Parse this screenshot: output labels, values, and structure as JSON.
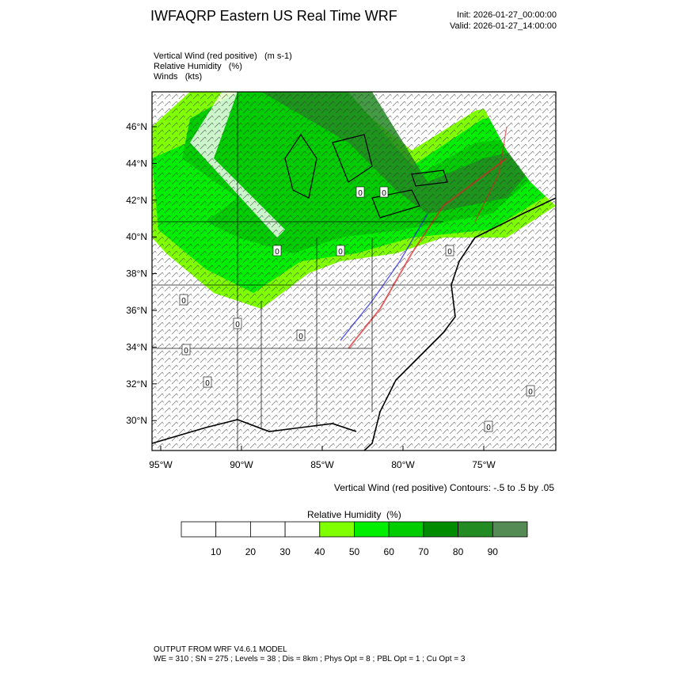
{
  "header": {
    "title": "IWFAQRP Eastern US Real Time WRF",
    "init": "Init: 2026-01-27_00:00:00",
    "valid": "Valid: 2026-01-27_14:00:00"
  },
  "fields": [
    "Vertical Wind (red positive)   (m s-1)",
    "Relative Humidity   (%)",
    "Winds   (kts)"
  ],
  "map": {
    "lat_labels": [
      "46°N",
      "44°N",
      "42°N",
      "40°N",
      "38°N",
      "36°N",
      "34°N",
      "32°N",
      "30°N"
    ],
    "lon_labels": [
      "95°W",
      "90°W",
      "85°W",
      "80°W",
      "75°W"
    ],
    "contour_labels": [
      "0",
      "0",
      "0",
      "0",
      "0",
      "0",
      "0",
      "0",
      "0",
      "0",
      "0",
      "0"
    ],
    "contour_note": "Vertical Wind (red positive) Contours: -.5 to .5 by .05"
  },
  "colorbar": {
    "title": "Relative Humidity  (%)",
    "labels": [
      "10",
      "20",
      "30",
      "40",
      "50",
      "60",
      "70",
      "80",
      "90"
    ],
    "colors": [
      "#ffffff",
      "#ffffff",
      "#ffffff",
      "#ffffff",
      "#7fff00",
      "#00ef00",
      "#00cd00",
      "#008b00",
      "#228b22",
      "#548b54"
    ]
  },
  "footer": {
    "line1": "OUTPUT FROM WRF V4.6.1 MODEL",
    "line2": "WE = 310 ; SN = 275 ; Levels = 38 ; Dis = 8km ; Phys Opt = 8 ; PBL Opt = 1 ; Cu Opt = 3"
  }
}
